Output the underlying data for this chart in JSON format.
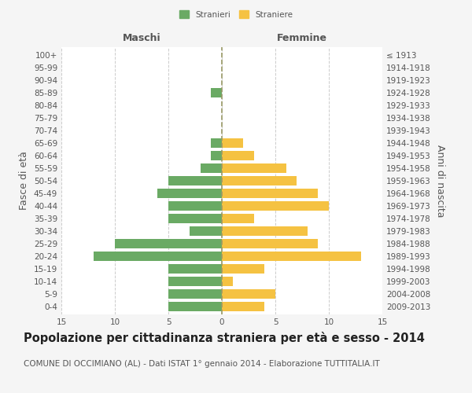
{
  "age_groups": [
    "0-4",
    "5-9",
    "10-14",
    "15-19",
    "20-24",
    "25-29",
    "30-34",
    "35-39",
    "40-44",
    "45-49",
    "50-54",
    "55-59",
    "60-64",
    "65-69",
    "70-74",
    "75-79",
    "80-84",
    "85-89",
    "90-94",
    "95-99",
    "100+"
  ],
  "birth_years": [
    "2009-2013",
    "2004-2008",
    "1999-2003",
    "1994-1998",
    "1989-1993",
    "1984-1988",
    "1979-1983",
    "1974-1978",
    "1969-1973",
    "1964-1968",
    "1959-1963",
    "1954-1958",
    "1949-1953",
    "1944-1948",
    "1939-1943",
    "1934-1938",
    "1929-1933",
    "1924-1928",
    "1919-1923",
    "1914-1918",
    "≤ 1913"
  ],
  "males": [
    5,
    5,
    5,
    5,
    12,
    10,
    3,
    5,
    5,
    6,
    5,
    2,
    1,
    1,
    0,
    0,
    0,
    1,
    0,
    0,
    0
  ],
  "females": [
    4,
    5,
    1,
    4,
    13,
    9,
    8,
    3,
    10,
    9,
    7,
    6,
    3,
    2,
    0,
    0,
    0,
    0,
    0,
    0,
    0
  ],
  "male_color": "#6aaa64",
  "female_color": "#f5c242",
  "bar_height": 0.75,
  "xlim": 15,
  "title": "Popolazione per cittadinanza straniera per età e sesso - 2014",
  "subtitle": "COMUNE DI OCCIMIANO (AL) - Dati ISTAT 1° gennaio 2014 - Elaborazione TUTTITALIA.IT",
  "ylabel_left": "Fasce di età",
  "ylabel_right": "Anni di nascita",
  "xlabel_left": "Maschi",
  "xlabel_right": "Femmine",
  "legend_stranieri": "Stranieri",
  "legend_straniere": "Straniere",
  "bg_color": "#f5f5f5",
  "plot_bg_color": "#ffffff",
  "grid_color": "#cccccc",
  "center_line_color": "#999966",
  "text_color": "#555555",
  "title_color": "#222222",
  "title_fontsize": 10.5,
  "subtitle_fontsize": 7.5,
  "tick_fontsize": 7.5,
  "label_fontsize": 9
}
